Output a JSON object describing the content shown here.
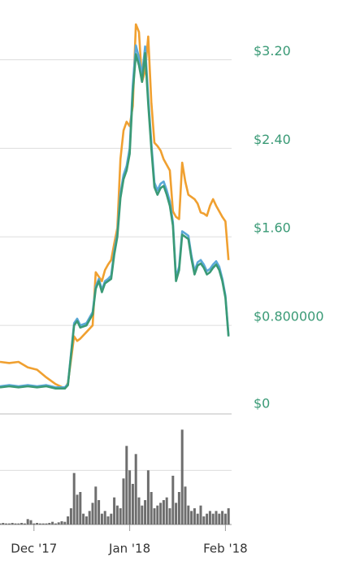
{
  "chart_data": [
    {
      "type": "line",
      "x": [
        -11,
        -8,
        -5,
        -2,
        1,
        4,
        7,
        10,
        11,
        13,
        14,
        15,
        17,
        19,
        20,
        21,
        22,
        23,
        24,
        25,
        26,
        27,
        28,
        29,
        30,
        31,
        32,
        33,
        34,
        35,
        36,
        37,
        38,
        39,
        40,
        41,
        42,
        43,
        44,
        45,
        46,
        47,
        48,
        49,
        50,
        51,
        52,
        53,
        54,
        55,
        56,
        57,
        58,
        59,
        60,
        61,
        62,
        63
      ],
      "series": [
        {
          "color": "#f0a030",
          "values": [
            0.47,
            0.46,
            0.47,
            0.42,
            0.4,
            0.33,
            0.27,
            0.23,
            0.28,
            0.7,
            0.66,
            0.68,
            0.74,
            0.8,
            1.28,
            1.24,
            1.2,
            1.3,
            1.35,
            1.39,
            1.54,
            1.68,
            2.3,
            2.56,
            2.64,
            2.6,
            2.78,
            3.52,
            3.45,
            3.0,
            3.1,
            3.41,
            2.82,
            2.45,
            2.42,
            2.38,
            2.3,
            2.25,
            2.2,
            1.83,
            1.78,
            1.76,
            2.27,
            2.1,
            1.98,
            1.96,
            1.94,
            1.9,
            1.82,
            1.81,
            1.79,
            1.88,
            1.94,
            1.88,
            1.83,
            1.78,
            1.74,
            1.39
          ]
        },
        {
          "color": "#5aa8d8",
          "values": [
            0.25,
            0.26,
            0.25,
            0.26,
            0.25,
            0.26,
            0.24,
            0.24,
            0.27,
            0.82,
            0.86,
            0.8,
            0.82,
            0.92,
            1.15,
            1.22,
            1.12,
            1.2,
            1.22,
            1.25,
            1.47,
            1.63,
            1.99,
            2.16,
            2.24,
            2.4,
            2.97,
            3.33,
            3.22,
            3.06,
            3.32,
            2.86,
            2.45,
            2.09,
            2.02,
            2.08,
            2.1,
            2.02,
            1.92,
            1.73,
            1.23,
            1.33,
            1.65,
            1.63,
            1.61,
            1.43,
            1.29,
            1.37,
            1.39,
            1.35,
            1.29,
            1.31,
            1.35,
            1.38,
            1.33,
            1.22,
            1.07,
            0.71
          ]
        },
        {
          "color": "#3a9a76",
          "values": [
            0.24,
            0.25,
            0.24,
            0.25,
            0.24,
            0.25,
            0.23,
            0.23,
            0.26,
            0.8,
            0.84,
            0.78,
            0.8,
            0.9,
            1.13,
            1.2,
            1.1,
            1.18,
            1.2,
            1.22,
            1.44,
            1.6,
            1.95,
            2.12,
            2.2,
            2.35,
            2.9,
            3.25,
            3.15,
            3.0,
            3.26,
            2.8,
            2.4,
            2.05,
            1.98,
            2.04,
            2.06,
            1.98,
            1.88,
            1.7,
            1.2,
            1.3,
            1.62,
            1.6,
            1.58,
            1.4,
            1.26,
            1.34,
            1.36,
            1.32,
            1.26,
            1.28,
            1.32,
            1.35,
            1.3,
            1.2,
            1.05,
            0.7
          ]
        }
      ],
      "xlim": [
        -11,
        64
      ],
      "ylim": [
        0,
        3.6
      ],
      "yticks": [
        {
          "value": 0,
          "label": "$0"
        },
        {
          "value": 0.8,
          "label": "$0.800000"
        },
        {
          "value": 1.6,
          "label": "$1.60"
        },
        {
          "value": 2.4,
          "label": "$2.40"
        },
        {
          "value": 3.2,
          "label": "$3.20"
        }
      ],
      "tick_color": "#3a9a76",
      "grid": true
    },
    {
      "type": "bar",
      "x": [
        -11,
        -10,
        -9,
        -8,
        -7,
        -6,
        -5,
        -4,
        -3,
        -2,
        -1,
        0,
        1,
        2,
        3,
        4,
        5,
        6,
        7,
        8,
        9,
        10,
        11,
        12,
        13,
        14,
        15,
        16,
        17,
        18,
        19,
        20,
        21,
        22,
        23,
        24,
        25,
        26,
        27,
        28,
        29,
        30,
        31,
        32,
        33,
        34,
        35,
        36,
        37,
        38,
        39,
        40,
        41,
        42,
        43,
        44,
        45,
        46,
        47,
        48,
        49,
        50,
        51,
        52,
        53,
        54,
        55,
        56,
        57,
        58,
        59,
        60,
        61,
        62,
        63
      ],
      "values": [
        0.02,
        0.03,
        0.02,
        0.02,
        0.03,
        0.02,
        0.02,
        0.03,
        0.02,
        0.1,
        0.08,
        0.02,
        0.03,
        0.02,
        0.02,
        0.02,
        0.03,
        0.05,
        0.02,
        0.04,
        0.06,
        0.05,
        0.15,
        0.3,
        0.95,
        0.55,
        0.6,
        0.2,
        0.15,
        0.25,
        0.4,
        0.7,
        0.45,
        0.2,
        0.25,
        0.15,
        0.2,
        0.5,
        0.35,
        0.3,
        0.85,
        1.45,
        1.0,
        0.75,
        1.3,
        0.5,
        0.35,
        0.45,
        1.0,
        0.6,
        0.3,
        0.35,
        0.4,
        0.45,
        0.5,
        0.3,
        0.9,
        0.4,
        0.6,
        1.75,
        0.7,
        0.35,
        0.25,
        0.3,
        0.2,
        0.35,
        0.15,
        0.2,
        0.25,
        0.2,
        0.25,
        0.2,
        0.25,
        0.2,
        0.3
      ],
      "color": "#6e6e6e",
      "xlim": [
        -11,
        64
      ],
      "ylim": [
        0,
        1.95
      ],
      "yticks": [
        0,
        1
      ],
      "xticks": [
        {
          "value": 0,
          "label": "Dec '17"
        },
        {
          "value": 31,
          "label": "Jan '18"
        },
        {
          "value": 62,
          "label": "Feb '18"
        }
      ],
      "grid": true
    }
  ]
}
